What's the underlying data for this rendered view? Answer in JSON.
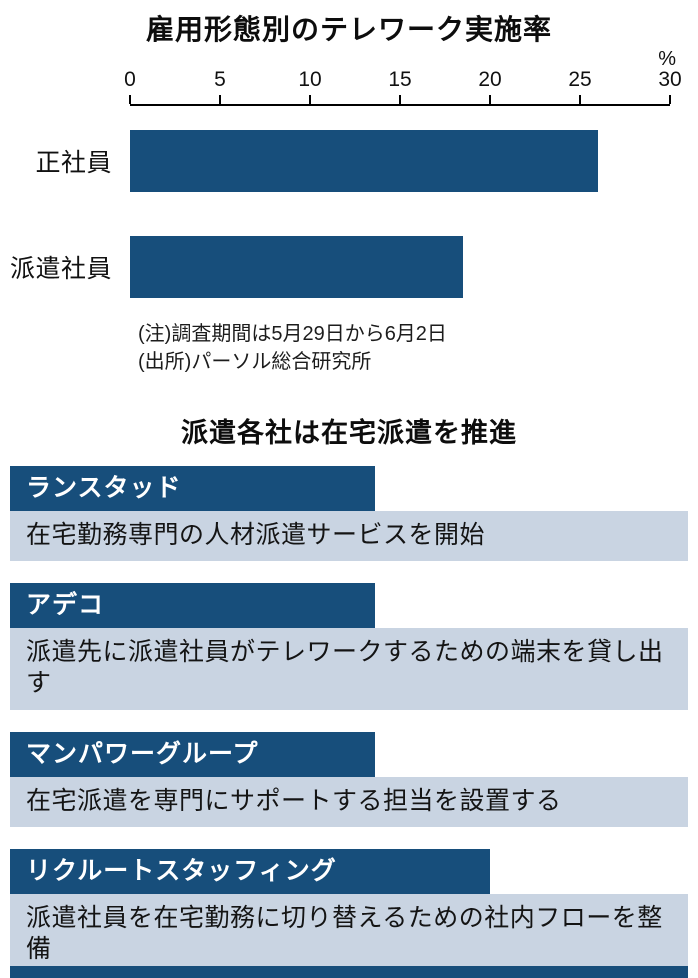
{
  "chart": {
    "title": "雇用形態別のテレワーク実施率",
    "unit_label": "%",
    "notes": [
      "(注)調査期間は5月29日から6月2日",
      "(出所)パーソル総合研究所"
    ]
  },
  "chart_data": {
    "type": "bar",
    "orientation": "horizontal",
    "title": "雇用形態別のテレワーク実施率",
    "categories": [
      "正社員",
      "派遣社員"
    ],
    "values": [
      26,
      18.5
    ],
    "xlabel": "%",
    "ylabel": "",
    "xlim": [
      0,
      30
    ],
    "xticks": [
      0,
      5,
      10,
      15,
      20,
      25,
      30
    ],
    "grid": false,
    "legend": "none"
  },
  "section": {
    "title": "派遣各社は在宅派遣を推進",
    "items": [
      {
        "company": "ランスタッド",
        "description": "在宅勤務専門の人材派遣サービスを開始"
      },
      {
        "company": "アデコ",
        "description": "派遣先に派遣社員がテレワークするための端末を貸し出す"
      },
      {
        "company": "マンパワーグループ",
        "description": "在宅派遣を専門にサポートする担当を設置する"
      },
      {
        "company": "リクルートスタッフィング",
        "description": "派遣社員を在宅勤務に切り替えるための社内フローを整備"
      }
    ]
  },
  "colors": {
    "primary": "#174e7b",
    "panel_body_bg": "#c9d4e2",
    "text": "#111111"
  }
}
